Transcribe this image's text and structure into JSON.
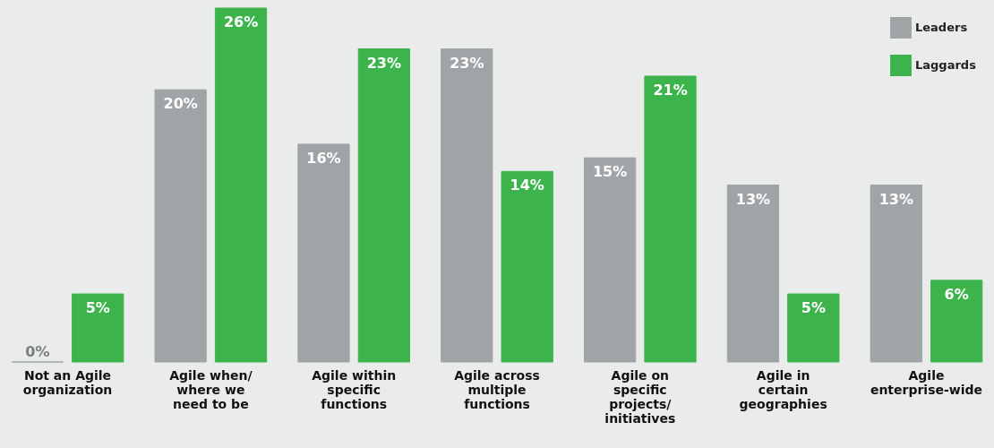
{
  "chart_data": {
    "type": "bar",
    "categories": [
      "Not an Agile organization",
      "Agile when/ where we need to be",
      "Agile within specific functions",
      "Agile across multiple functions",
      "Agile on specific projects/ initiatives",
      "Agile in certain geographies",
      "Agile enterprise-wide"
    ],
    "series": [
      {
        "name": "Leaders",
        "color": "#a1a4a6",
        "values": [
          0,
          20,
          16,
          23,
          15,
          13,
          13
        ],
        "value_labels": [
          "0%",
          "20%",
          "16%",
          "23%",
          "15%",
          "13%",
          "13%"
        ]
      },
      {
        "name": "Laggards",
        "color": "#3cb44b",
        "values": [
          5,
          26,
          23,
          14,
          21,
          5,
          6
        ],
        "value_labels": [
          "5%",
          "26%",
          "23%",
          "14%",
          "21%",
          "5%",
          "6%"
        ]
      }
    ],
    "legend": "top right"
  }
}
